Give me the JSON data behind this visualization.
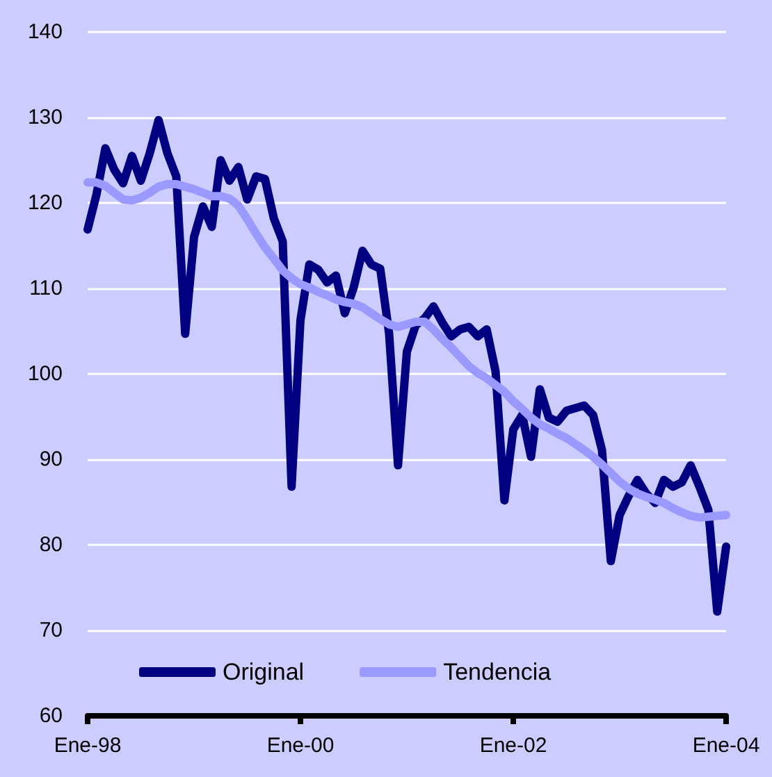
{
  "chart_data": {
    "type": "line",
    "categories": [
      "Ene-98",
      null,
      null,
      null,
      null,
      null,
      null,
      null,
      null,
      null,
      null,
      null,
      null,
      null,
      null,
      null,
      null,
      null,
      null,
      null,
      null,
      null,
      null,
      null,
      "Ene-00",
      null,
      null,
      null,
      null,
      null,
      null,
      null,
      null,
      null,
      null,
      null,
      null,
      null,
      null,
      null,
      null,
      null,
      null,
      null,
      null,
      null,
      null,
      null,
      "Ene-02",
      null,
      null,
      null,
      null,
      null,
      null,
      null,
      null,
      null,
      null,
      null,
      null,
      null,
      null,
      null,
      null,
      null,
      null,
      null,
      null,
      null,
      null,
      null,
      "Ene-04"
    ],
    "series": [
      {
        "name": "Original",
        "color": "#000080",
        "values": [
          116.9,
          121,
          126.4,
          123.9,
          122.3,
          125.5,
          122.6,
          125.8,
          129.7,
          125.8,
          123.1,
          104.7,
          116,
          119.6,
          117.2,
          125,
          122.6,
          124.2,
          120.4,
          123.1,
          122.8,
          118.2,
          115.5,
          86.8,
          106.3,
          112.8,
          112.2,
          110.7,
          111.5,
          107.1,
          110.1,
          114.4,
          112.8,
          112.3,
          104.7,
          89.3,
          102.6,
          105.7,
          106.5,
          107.9,
          106,
          104.4,
          105.2,
          105.5,
          104.4,
          105.2,
          100.3,
          85.2,
          93.5,
          95.2,
          90.3,
          98.2,
          94.9,
          94.4,
          95.7,
          96,
          96.3,
          95.2,
          91.1,
          78.1,
          83.5,
          85.7,
          87.6,
          86,
          84.9,
          87.6,
          86.8,
          87.3,
          89.3,
          86.8,
          84.1,
          72.2,
          79.8
        ]
      },
      {
        "name": "Tendencia",
        "color": "#9999ff",
        "values": [
          122.4,
          122.4,
          122,
          121.2,
          120.4,
          120.3,
          120.6,
          121.2,
          121.9,
          122.2,
          122.2,
          121.9,
          121.6,
          121.2,
          120.8,
          120.8,
          120.5,
          119.7,
          118.1,
          116.4,
          114.8,
          113.5,
          112.1,
          111.2,
          110.5,
          110.1,
          109.6,
          109.2,
          108.7,
          108.4,
          108.2,
          107.8,
          107.1,
          106.4,
          105.8,
          105.5,
          105.8,
          106.1,
          106.1,
          105.2,
          104.1,
          103.1,
          102,
          100.9,
          100.1,
          99.5,
          98.7,
          97.9,
          96.8,
          95.9,
          94.9,
          94.1,
          93.6,
          93,
          92.5,
          91.8,
          91.1,
          90.3,
          89.4,
          88.4,
          87.4,
          86.6,
          86,
          85.6,
          85.3,
          84.9,
          84.3,
          83.8,
          83.4,
          83.2,
          83.3,
          83.4,
          83.5
        ]
      }
    ],
    "ylim": [
      60,
      140
    ],
    "yticks": [
      60,
      70,
      80,
      90,
      100,
      110,
      120,
      130,
      140
    ],
    "grid": "y",
    "legend": "bottom",
    "marker": "none",
    "line_style": "solid"
  }
}
